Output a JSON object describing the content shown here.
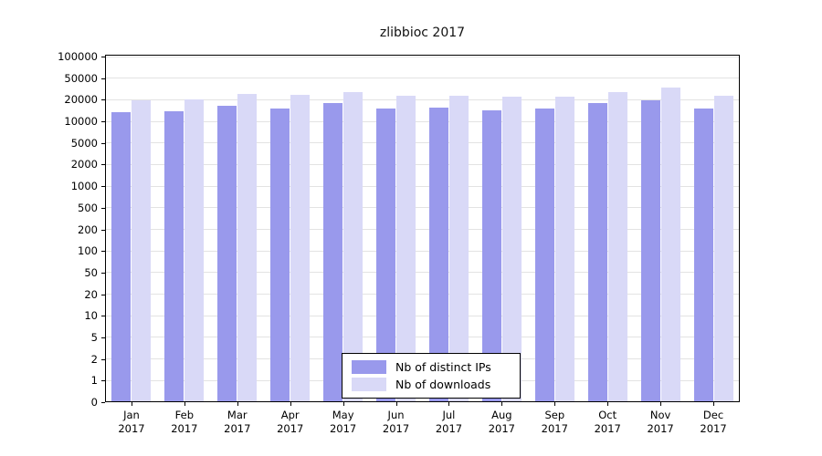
{
  "title": "zlibbioc 2017",
  "chart_data": {
    "type": "bar",
    "title": "zlibbioc 2017",
    "categories": [
      "Jan 2017",
      "Feb 2017",
      "Mar 2017",
      "Apr 2017",
      "May 2017",
      "Jun 2017",
      "Jul 2017",
      "Aug 2017",
      "Sep 2017",
      "Oct 2017",
      "Nov 2017",
      "Dec 2017"
    ],
    "series": [
      {
        "name": "Nb of distinct IPs",
        "color": "#9999ec",
        "values": [
          13400,
          13700,
          16400,
          15300,
          17900,
          15300,
          15400,
          14300,
          15200,
          17800,
          19900,
          15300
        ]
      },
      {
        "name": "Nb of downloads",
        "color": "#d9d9f7",
        "values": [
          19600,
          20300,
          25900,
          24200,
          27200,
          24100,
          23700,
          22600,
          23100,
          27300,
          33100,
          23800
        ]
      }
    ],
    "y_ticks": [
      0,
      1,
      2,
      5,
      10,
      20,
      50,
      100,
      200,
      500,
      1000,
      2000,
      5000,
      10000,
      20000,
      50000,
      100000
    ],
    "y_scale": "log-even-ticks",
    "ylim": [
      0,
      100000
    ],
    "xlabel": "",
    "ylabel": "",
    "grid": "horizontal",
    "legend_position": "bottom-center-inside"
  },
  "colors": {
    "background": "#ffffff",
    "grid": "#e3e3e3",
    "axis": "#000000",
    "bar_distinct_ips": "#9999ec",
    "bar_downloads": "#d9d9f7"
  }
}
